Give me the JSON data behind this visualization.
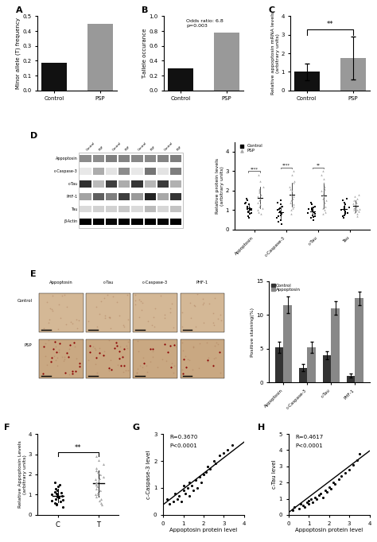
{
  "panel_A": {
    "categories": [
      "Control",
      "PSP"
    ],
    "values": [
      0.185,
      0.45
    ],
    "colors": [
      "#111111",
      "#999999"
    ],
    "ylabel": "Minor allele (T) frequency",
    "ylim": [
      0,
      0.5
    ],
    "yticks": [
      0.0,
      0.1,
      0.2,
      0.3,
      0.4,
      0.5
    ]
  },
  "panel_B": {
    "categories": [
      "Control",
      "PSP"
    ],
    "values": [
      0.3,
      0.78
    ],
    "colors": [
      "#111111",
      "#999999"
    ],
    "ylabel": "T-allele occurance",
    "ylim": [
      0,
      1.0
    ],
    "yticks": [
      0.0,
      0.2,
      0.4,
      0.6,
      0.8,
      1.0
    ],
    "annotation": "Odds ratio: 6.8\np=0.003"
  },
  "panel_C": {
    "categories": [
      "Control",
      "PSP"
    ],
    "values": [
      1.0,
      1.75
    ],
    "errors": [
      0.45,
      1.15
    ],
    "colors": [
      "#111111",
      "#999999"
    ],
    "ylabel": "Relative appoptosin mRNA levels\n(arbitrary units)",
    "ylim": [
      0,
      4
    ],
    "yticks": [
      0,
      1,
      2,
      3,
      4
    ],
    "sig": "**"
  },
  "panel_D_scatter": {
    "proteins": [
      "Appoptosin",
      "c-Caspase-3",
      "c-Tau",
      "Tau"
    ],
    "ylabel": "Relative protein levels\n(arbitrary units)",
    "ylim": [
      0,
      4.5
    ],
    "yticks": [
      0,
      1,
      2,
      3,
      4
    ],
    "sig_labels": [
      "****",
      "****",
      "**",
      ""
    ],
    "control_scatter": {
      "Appoptosin": [
        0.6,
        0.7,
        0.8,
        0.85,
        0.9,
        0.95,
        1.0,
        1.0,
        1.05,
        1.1,
        1.15,
        1.2,
        1.3,
        1.35,
        1.4,
        1.5,
        1.6
      ],
      "c-Caspase-3": [
        0.3,
        0.4,
        0.5,
        0.6,
        0.7,
        0.75,
        0.8,
        0.85,
        0.9,
        0.95,
        1.0,
        1.05,
        1.1,
        1.2,
        1.3,
        1.4,
        1.5
      ],
      "c-Tau": [
        0.5,
        0.6,
        0.65,
        0.7,
        0.75,
        0.8,
        0.85,
        0.9,
        0.95,
        1.0,
        1.0,
        1.05,
        1.1,
        1.15,
        1.2,
        1.3,
        1.4
      ],
      "Tau": [
        0.6,
        0.7,
        0.75,
        0.8,
        0.85,
        0.9,
        0.95,
        1.0,
        1.0,
        1.05,
        1.1,
        1.15,
        1.2,
        1.3,
        1.4,
        1.5,
        1.6
      ]
    },
    "psp_scatter": {
      "Appoptosin": [
        0.8,
        0.9,
        1.0,
        1.1,
        1.2,
        1.3,
        1.4,
        1.5,
        1.6,
        1.7,
        1.8,
        1.9,
        2.0,
        2.1,
        2.2,
        2.5,
        2.8
      ],
      "c-Caspase-3": [
        0.8,
        1.0,
        1.1,
        1.2,
        1.3,
        1.4,
        1.5,
        1.6,
        1.7,
        1.8,
        2.0,
        2.1,
        2.2,
        2.4,
        2.5,
        2.8,
        3.0
      ],
      "c-Tau": [
        0.8,
        0.9,
        1.0,
        1.1,
        1.2,
        1.4,
        1.5,
        1.6,
        1.7,
        1.8,
        2.0,
        2.1,
        2.2,
        2.4,
        2.6,
        2.8,
        3.0
      ],
      "Tau": [
        0.7,
        0.8,
        0.9,
        0.95,
        1.0,
        1.0,
        1.05,
        1.1,
        1.15,
        1.2,
        1.3,
        1.35,
        1.4,
        1.5,
        1.6,
        1.7,
        1.8
      ]
    }
  },
  "panel_E_bar": {
    "proteins": [
      "Appoptosin",
      "c-Caspase-3",
      "c-Tau",
      "PHF-1"
    ],
    "control_values": [
      5.2,
      2.2,
      4.0,
      1.0
    ],
    "appoptosin_values": [
      11.5,
      5.2,
      11.0,
      12.5
    ],
    "control_errors": [
      0.8,
      0.5,
      0.6,
      0.3
    ],
    "appoptosin_errors": [
      1.2,
      0.8,
      1.0,
      1.0
    ],
    "ylabel": "Positive staining(%)",
    "ylim": [
      0,
      15
    ],
    "yticks": [
      0,
      5,
      10,
      15
    ],
    "colors": [
      "#333333",
      "#888888"
    ],
    "legend": [
      "Control",
      "Appoptosin"
    ]
  },
  "panel_F": {
    "C_scatter": [
      0.4,
      0.5,
      0.55,
      0.6,
      0.65,
      0.7,
      0.75,
      0.8,
      0.85,
      0.9,
      0.95,
      1.0,
      1.0,
      1.05,
      1.1,
      1.15,
      1.2,
      1.3,
      1.4,
      1.5,
      1.6
    ],
    "T_scatter": [
      0.5,
      0.6,
      0.7,
      0.8,
      0.9,
      1.0,
      1.0,
      1.1,
      1.2,
      1.3,
      1.4,
      1.5,
      1.5,
      1.6,
      1.7,
      1.75,
      1.8,
      1.9,
      2.0,
      2.1,
      2.2,
      2.3,
      2.5,
      2.7,
      2.9
    ],
    "ylabel": "Relative Appoptosin Levels\n(arbitrary units)",
    "ylim": [
      0,
      4
    ],
    "yticks": [
      0,
      1,
      2,
      3,
      4
    ],
    "xlabel_C": "C",
    "xlabel_T": "T",
    "sig": "**"
  },
  "panel_G": {
    "x": [
      0.2,
      0.3,
      0.5,
      0.6,
      0.7,
      0.8,
      0.9,
      1.0,
      1.0,
      1.1,
      1.2,
      1.3,
      1.3,
      1.4,
      1.5,
      1.6,
      1.7,
      1.8,
      1.9,
      2.0,
      2.1,
      2.2,
      2.3,
      2.5,
      2.6,
      2.8,
      3.0,
      3.2,
      3.4
    ],
    "y": [
      0.6,
      0.4,
      0.5,
      0.8,
      0.6,
      0.7,
      0.5,
      0.9,
      1.1,
      0.8,
      1.0,
      0.7,
      1.2,
      1.1,
      0.9,
      1.3,
      1.0,
      1.4,
      1.2,
      1.5,
      1.6,
      1.8,
      1.7,
      2.0,
      1.9,
      2.2,
      2.3,
      2.4,
      2.6
    ],
    "xlabel": "Appoptosin protein level",
    "ylabel": "c-Caspase-3 level",
    "xlim": [
      0,
      4
    ],
    "ylim": [
      0,
      3
    ],
    "xticks": [
      0,
      1,
      2,
      3,
      4
    ],
    "yticks": [
      0,
      1,
      2,
      3
    ],
    "R": "R=0.3670",
    "P": "P<0.0001",
    "slope": 0.58,
    "intercept": 0.38
  },
  "panel_H": {
    "x": [
      0.2,
      0.3,
      0.5,
      0.6,
      0.7,
      0.8,
      0.9,
      1.0,
      1.0,
      1.1,
      1.2,
      1.3,
      1.4,
      1.5,
      1.6,
      1.7,
      1.8,
      1.9,
      2.0,
      2.1,
      2.2,
      2.3,
      2.5,
      2.6,
      2.8,
      3.0,
      3.2,
      3.4,
      3.5
    ],
    "y": [
      0.3,
      0.5,
      0.4,
      0.7,
      0.6,
      0.5,
      0.8,
      0.9,
      0.7,
      1.0,
      0.8,
      1.1,
      1.0,
      1.2,
      1.3,
      1.1,
      1.5,
      1.4,
      1.7,
      1.6,
      2.0,
      1.9,
      2.2,
      2.4,
      2.6,
      2.8,
      3.1,
      3.4,
      3.8
    ],
    "xlabel": "Appoptosin protein level",
    "ylabel": "c-Tau level",
    "xlim": [
      0,
      4
    ],
    "ylim": [
      0,
      5
    ],
    "xticks": [
      0,
      1,
      2,
      3,
      4
    ],
    "yticks": [
      0,
      1,
      2,
      3,
      4,
      5
    ],
    "R": "R=0.4617",
    "P": "P<0.0001",
    "slope": 0.95,
    "intercept": 0.15
  },
  "wb_proteins": [
    "Appoptosin",
    "c-Caspase-3",
    "c-Tau",
    "PHF-1",
    "Tau",
    "β-Actin"
  ],
  "wb_col_labels": [
    "Control",
    "PSP",
    "Control",
    "PSP",
    "Control",
    "PSP",
    "Control",
    "PSP"
  ],
  "wb_bands": {
    "Appoptosin": [
      0.25,
      0.25,
      0.28,
      0.27,
      0.26,
      0.26,
      0.27,
      0.28
    ],
    "c-Caspase-3": [
      0.05,
      0.18,
      0.06,
      0.25,
      0.05,
      0.3,
      0.06,
      0.28
    ],
    "c-Tau": [
      0.45,
      0.15,
      0.42,
      0.18,
      0.44,
      0.16,
      0.43,
      0.17
    ],
    "PHF-1": [
      0.2,
      0.35,
      0.28,
      0.42,
      0.22,
      0.48,
      0.19,
      0.44
    ],
    "Tau": [
      0.08,
      0.1,
      0.1,
      0.12,
      0.08,
      0.15,
      0.09,
      0.13
    ],
    "β-Actin": [
      0.55,
      0.55,
      0.54,
      0.55,
      0.55,
      0.56,
      0.54,
      0.55
    ]
  }
}
